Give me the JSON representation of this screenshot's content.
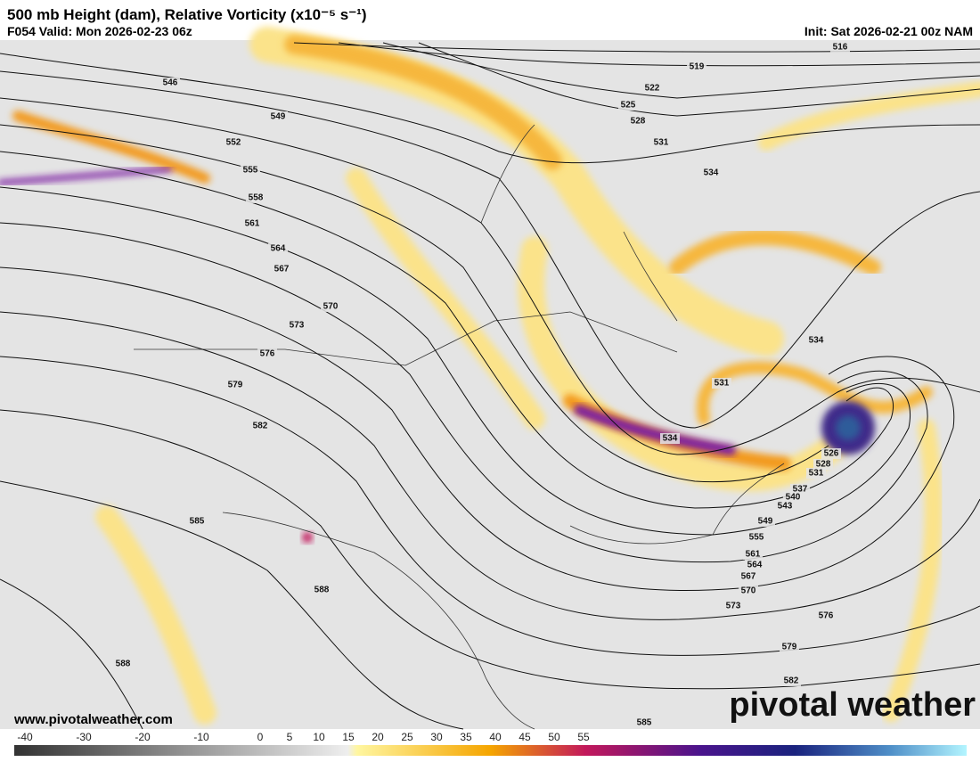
{
  "header": {
    "title": "500 mb Height (dam), Relative Vorticity (x10⁻⁵ s⁻¹)",
    "valid": "F054 Valid: Mon 2026-02-23 06z",
    "init": "Init: Sat 2026-02-21 00z NAM"
  },
  "contour_labels": [
    516,
    519,
    522,
    525,
    528,
    531,
    534,
    546,
    549,
    552,
    555,
    558,
    561,
    564,
    567,
    570,
    573,
    576,
    579,
    582,
    585,
    588,
    588,
    534,
    531,
    534,
    526,
    528,
    531,
    537,
    540,
    543,
    549,
    555,
    561,
    564,
    567,
    570,
    573,
    576,
    579,
    582,
    585
  ],
  "footer": {
    "website": "www.pivotalweather.com",
    "logo": "pivotal weather"
  },
  "colorbar": {
    "ticks": [
      -40,
      -30,
      -20,
      -10,
      0,
      5,
      10,
      15,
      20,
      25,
      30,
      35,
      40,
      45,
      50,
      55
    ]
  }
}
